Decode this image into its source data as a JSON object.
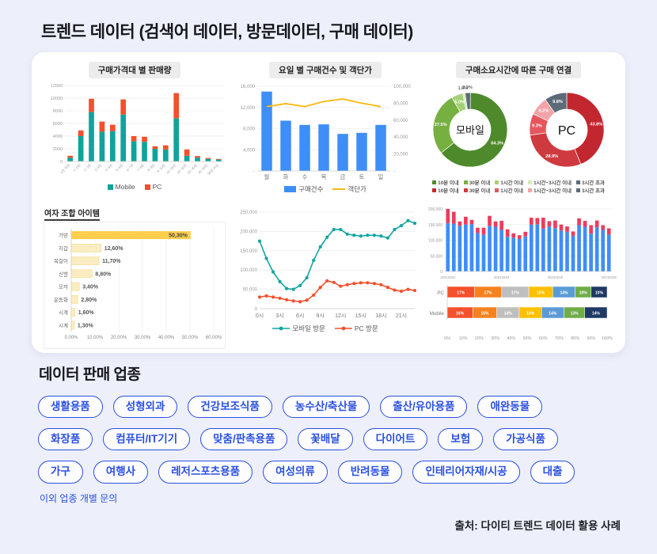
{
  "page": {
    "title": "트렌드 데이터 (검색어 데이터, 방문데이터, 구매 데이터)",
    "section_title": "데이터 판매 업종",
    "note": "이외 업종 개별 문의",
    "source": "출처: 다이티 트렌드 데이터 활용 사례"
  },
  "industries": {
    "accent_color": "#2b50e0",
    "rows": [
      [
        "생활용품",
        "성형외과",
        "건강보조식품",
        "농수산/축산물",
        "출산/유아용품",
        "애완동물"
      ],
      [
        "화장품",
        "컴퓨터/IT기기",
        "맞춤/판촉용품",
        "꽃배달",
        "다이어트",
        "보험",
        "가공식품"
      ],
      [
        "가구",
        "여행사",
        "레저스포츠용품",
        "여성의류",
        "반려동물",
        "인테리어자재/시공",
        "대출"
      ]
    ]
  },
  "chart_data": [
    {
      "id": "price-sales",
      "type": "bar",
      "stacked": true,
      "title": "구매가격대 별 판매량",
      "categories": [
        "1만 미만",
        "1~2만",
        "2~3만",
        "3~4만",
        "4~5만",
        "5~6만",
        "6~7만",
        "7~8만",
        "8~9만",
        "9~10만",
        "10~15만",
        "15~20만",
        "20~30만",
        "30~50만",
        "50만 이상"
      ],
      "series": [
        {
          "name": "Mobile",
          "color": "#10a39c",
          "values": [
            600,
            4000,
            7800,
            4700,
            4800,
            7400,
            3200,
            3100,
            2000,
            1900,
            6800,
            900,
            600,
            400,
            300
          ]
        },
        {
          "name": "PC",
          "color": "#f4502c",
          "values": [
            300,
            900,
            2100,
            1600,
            1000,
            2400,
            800,
            800,
            400,
            650,
            4000,
            1000,
            250,
            150,
            100
          ]
        }
      ],
      "ylim": [
        0,
        12000
      ],
      "ytick": 2000,
      "grid": true,
      "legend_position": "bottom"
    },
    {
      "id": "weekday-purchases",
      "type": "bar",
      "title": "요일 별 구매건수 및 객단가",
      "categories": [
        "월",
        "화",
        "수",
        "목",
        "금",
        "토",
        "일"
      ],
      "bar": {
        "name": "구매건수",
        "color": "#3e8ef7",
        "values": [
          15000,
          9500,
          8700,
          8800,
          7000,
          7200,
          8700
        ],
        "ylim": [
          0,
          16000
        ],
        "ytick": 4000
      },
      "line": {
        "name": "객단가",
        "color": "#fdb813",
        "values": [
          76000,
          79500,
          76000,
          82000,
          85000,
          80000,
          76000
        ],
        "ylim": [
          0,
          100000
        ],
        "ytick": 20000
      },
      "grid": true,
      "legend_position": "bottom"
    },
    {
      "id": "purchase-duration-donuts",
      "type": "pie",
      "title": "구매소요시간에 따른 구매 연결",
      "donuts": [
        {
          "center_label": "모바일",
          "values": [
            64.3,
            27.5,
            5.0,
            1.0,
            2.3
          ],
          "value_labels": [
            "64.3%",
            "27.5%",
            "5.0%",
            "1.0%",
            "2.3%"
          ],
          "colors": [
            "#4e8a2c",
            "#76b041",
            "#a6d077",
            "#d5ebb4",
            "#5c6b7a"
          ]
        },
        {
          "center_label": "PC",
          "values": [
            43.8,
            28.9,
            9.3,
            8.2,
            9.8
          ],
          "value_labels": [
            "43.8%",
            "28.9%",
            "9.3%",
            "8.2%",
            "9.8%"
          ],
          "colors": [
            "#c2272f",
            "#ce3a40",
            "#e6565c",
            "#f2a3a8",
            "#5c6b7a"
          ]
        }
      ],
      "legend_labels": [
        "10분 이내",
        "30분 이내",
        "1시간 이내",
        "1시간~3시간 이내",
        "3시간 초과"
      ],
      "legend_position": "bottom"
    },
    {
      "id": "women-combo-items",
      "type": "bar",
      "orientation": "horizontal",
      "title": "여자 조합 아이템",
      "categories": [
        "가방",
        "지갑",
        "목걸이",
        "신발",
        "모자",
        "운동화",
        "시계",
        "시계"
      ],
      "values": [
        50.3,
        12.6,
        11.7,
        8.8,
        3.4,
        2.8,
        1.6,
        1.3
      ],
      "value_labels": [
        "50,30%",
        "12,60%",
        "11,70%",
        "8,80%",
        "3,40%",
        "2,80%",
        "1,60%",
        "1,30%"
      ],
      "xlim": [
        0,
        60
      ],
      "xtick_labels": [
        "0.00%",
        "10.00%",
        "20.00%",
        "30.00%",
        "40.00%",
        "50.00%",
        "60.00%"
      ],
      "bar_color_first": "#ffce4d",
      "bar_color_rest": "#fbedc2",
      "grid": true
    },
    {
      "id": "hourly-visits",
      "type": "line",
      "x_labels": [
        "0시",
        "3시",
        "6시",
        "9시",
        "12시",
        "15시",
        "18시",
        "21시"
      ],
      "x_count": 24,
      "series": [
        {
          "name": "모바일 방문",
          "color": "#12a5a0",
          "values": [
            175000,
            130000,
            95000,
            70000,
            52000,
            50000,
            60000,
            80000,
            125000,
            160000,
            185000,
            205000,
            205000,
            193000,
            190000,
            188000,
            190000,
            190000,
            188000,
            183000,
            205000,
            215000,
            228000,
            221000
          ]
        },
        {
          "name": "PC 방문",
          "color": "#f4502c",
          "values": [
            30000,
            33000,
            30000,
            27000,
            23000,
            20000,
            18000,
            22000,
            35000,
            55000,
            72000,
            68000,
            58000,
            62000,
            65000,
            67000,
            67000,
            65000,
            62000,
            55000,
            48000,
            45000,
            50000,
            47000
          ]
        }
      ],
      "ylim": [
        0,
        250000
      ],
      "ytick": 50000,
      "grid": true,
      "legend_position": "bottom"
    },
    {
      "id": "daily-traffic",
      "type": "bar",
      "stacked": true,
      "categories_tick_labels": {
        "0": "20210201",
        "9": "20210210",
        "18": "20210219",
        "27": "20210228"
      },
      "series": [
        {
          "name": "",
          "color": "#3e8ef7",
          "values": [
            155000,
            153000,
            146000,
            150000,
            151000,
            123000,
            118000,
            146000,
            143000,
            133000,
            111000,
            108000,
            104000,
            112000,
            150000,
            151000,
            137000,
            144000,
            139000,
            131000,
            127000,
            114000,
            148000,
            143000,
            121000,
            141000,
            133000,
            118000
          ]
        },
        {
          "name": "",
          "color": "#ee3c5c",
          "values": [
            45000,
            38000,
            14000,
            25000,
            14000,
            17000,
            22000,
            32000,
            17000,
            29000,
            24000,
            14000,
            12000,
            15000,
            22000,
            20000,
            35000,
            17000,
            24000,
            19000,
            17000,
            14000,
            22000,
            19000,
            27000,
            22000,
            15000,
            20000
          ]
        }
      ],
      "ylim": [
        0,
        200000
      ],
      "ytick": 50000,
      "grid": true
    },
    {
      "id": "device-share",
      "type": "bar",
      "orientation": "horizontal",
      "stacked_percent": true,
      "rows": [
        {
          "label": "PC",
          "values": [
            17,
            17,
            17,
            15,
            14,
            10,
            10
          ]
        },
        {
          "label": "Mobile",
          "values": [
            16,
            15,
            14,
            14,
            14,
            13,
            14
          ]
        }
      ],
      "colors": [
        "#f4502c",
        "#f58220",
        "#bfbfbf",
        "#ffc000",
        "#5b9bd5",
        "#70ad47",
        "#1f3864"
      ],
      "xtick_labels": [
        "0%",
        "10%",
        "20%",
        "30%",
        "40%",
        "50%",
        "60%",
        "70%",
        "80%",
        "90%",
        "100%"
      ]
    }
  ]
}
